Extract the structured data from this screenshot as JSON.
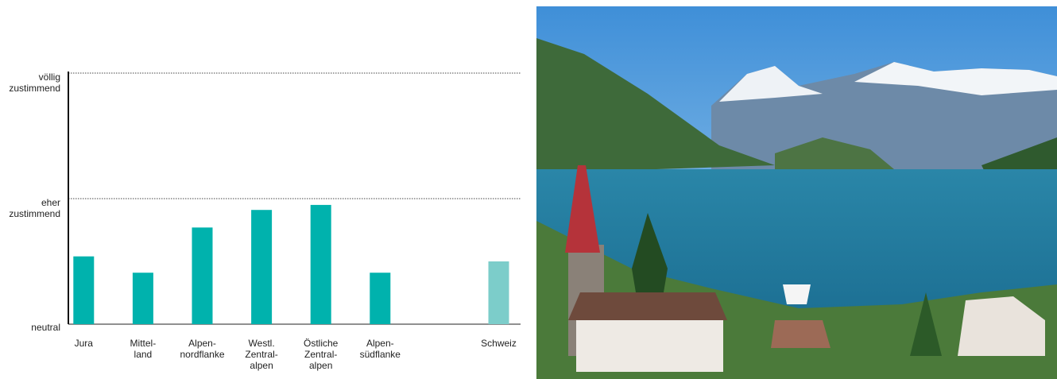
{
  "chart_data": {
    "type": "bar",
    "categories": [
      "Jura",
      "Mittel-\nland",
      "Alpen-\nnordflanke",
      "Westl.\nZentral-\nalpen",
      "Östliche\nZentral-\nalpen",
      "Alpen-\nsüdflanke",
      null,
      "Schweiz"
    ],
    "values": [
      0.54,
      0.41,
      0.77,
      0.91,
      0.95,
      0.41,
      null,
      0.5
    ],
    "colors": [
      "#00b2ad",
      "#00b2ad",
      "#00b2ad",
      "#00b2ad",
      "#00b2ad",
      "#00b2ad",
      null,
      "#7ccdca"
    ],
    "ylim": [
      0,
      2
    ],
    "yticks": [
      {
        "value": 0,
        "label": "neutral"
      },
      {
        "value": 1,
        "label": "eher\nzustimmend"
      },
      {
        "value": 2,
        "label": "völlig\nzustimmend"
      }
    ],
    "grid": true
  }
}
